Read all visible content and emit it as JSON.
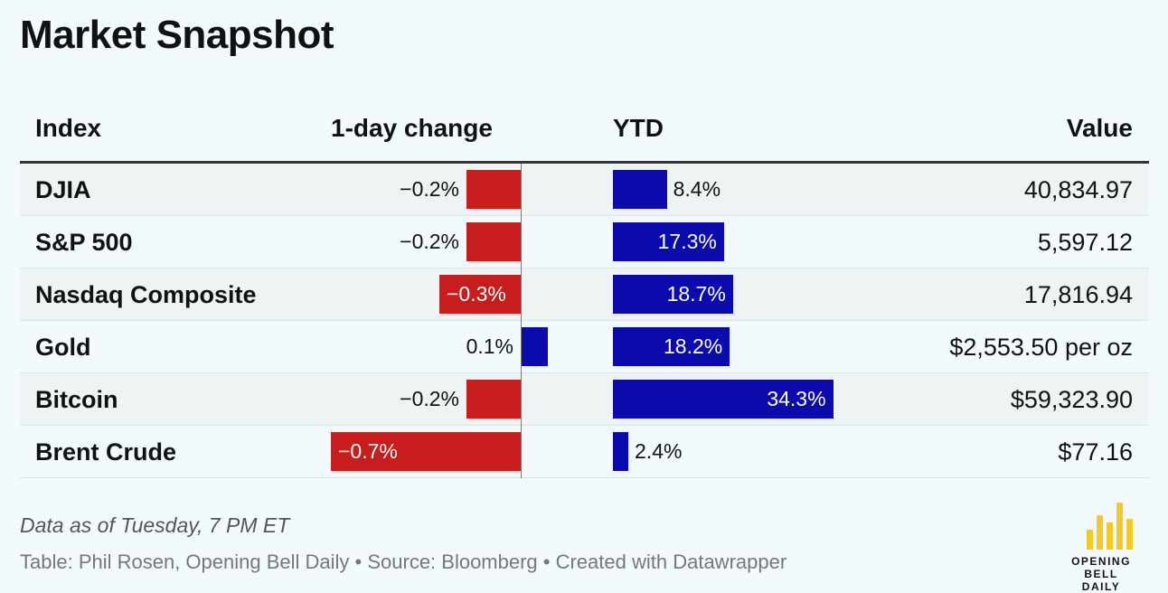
{
  "title": "Market Snapshot",
  "columns": {
    "index": "Index",
    "change": "1-day change",
    "ytd": "YTD",
    "value": "Value"
  },
  "colors": {
    "negative": "#c71e1d",
    "positive": "#0a0aad",
    "accent": "#f5c928"
  },
  "footer": {
    "note": "Data as of Tuesday, 7 PM ET",
    "credit": "Table: Phil Rosen, Opening Bell Daily • Source: Bloomberg • Created with Datawrapper"
  },
  "logo": {
    "line1": "OPENING BELL",
    "line2": "DAILY"
  },
  "chart_data": {
    "type": "table",
    "columns": [
      "Index",
      "1-day change",
      "YTD",
      "Value"
    ],
    "rows": [
      {
        "index": "DJIA",
        "change": -0.2,
        "change_label": "−0.2%",
        "ytd": 8.4,
        "ytd_label": "8.4%",
        "value": "40,834.97"
      },
      {
        "index": "S&P 500",
        "change": -0.2,
        "change_label": "−0.2%",
        "ytd": 17.3,
        "ytd_label": "17.3%",
        "value": "5,597.12"
      },
      {
        "index": "Nasdaq Composite",
        "change": -0.3,
        "change_label": "−0.3%",
        "ytd": 18.7,
        "ytd_label": "18.7%",
        "value": "17,816.94"
      },
      {
        "index": "Gold",
        "change": 0.1,
        "change_label": "0.1%",
        "ytd": 18.2,
        "ytd_label": "18.2%",
        "value": "$2,553.50 per oz"
      },
      {
        "index": "Bitcoin",
        "change": -0.2,
        "change_label": "−0.2%",
        "ytd": 34.3,
        "ytd_label": "34.3%",
        "value": "$59,323.90"
      },
      {
        "index": "Brent Crude",
        "change": -0.7,
        "change_label": "−0.7%",
        "ytd": 2.4,
        "ytd_label": "2.4%",
        "value": "$77.16"
      }
    ]
  }
}
